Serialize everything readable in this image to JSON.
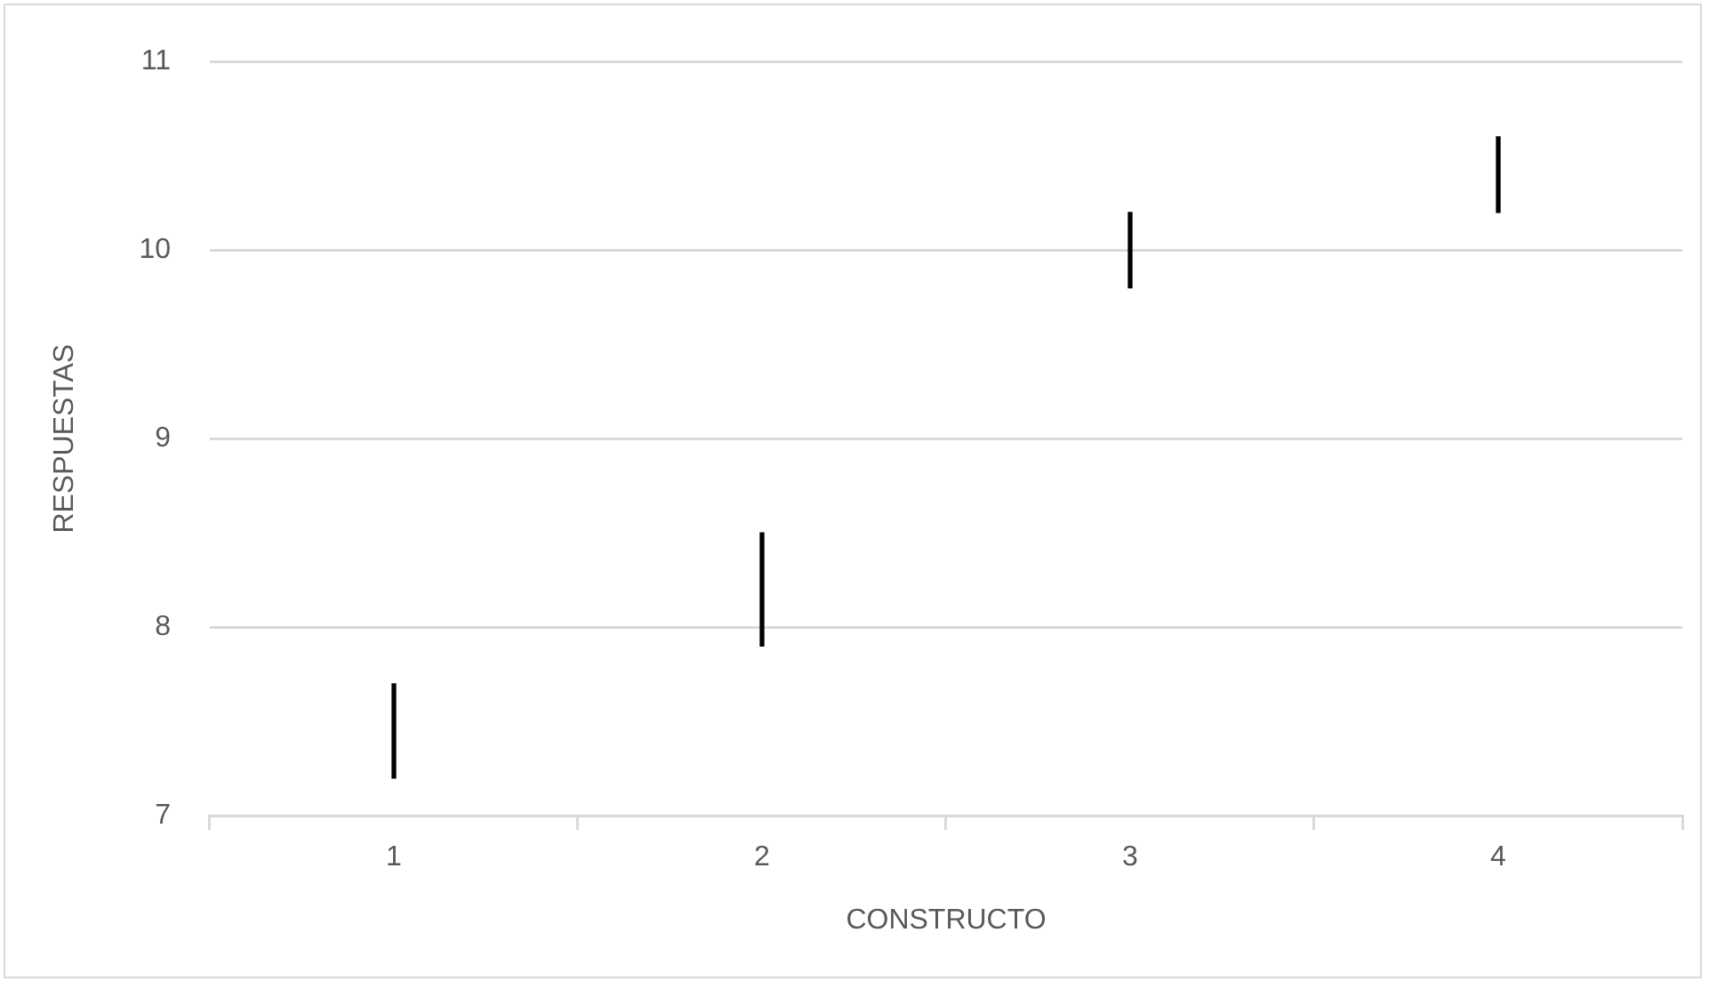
{
  "chart_data": {
    "type": "bar",
    "xlabel": "CONSTRUCTO",
    "ylabel": "RESPUESTAS",
    "categories": [
      "1",
      "2",
      "3",
      "4"
    ],
    "base": [
      7.2,
      7.9,
      9.8,
      10.2
    ],
    "values": [
      0.5,
      0.6,
      0.4,
      0.4
    ],
    "color": "#000000",
    "ylim": [
      7,
      11
    ],
    "yticks": [
      7,
      8,
      9,
      10,
      11
    ],
    "grid": "y",
    "legend": false
  }
}
